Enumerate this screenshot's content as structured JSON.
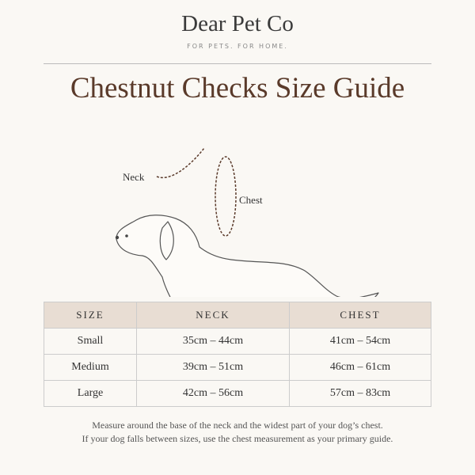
{
  "header": {
    "title": "Dear Pet Co",
    "tagline": "FOR PETS. FOR HOME."
  },
  "title": "Chestnut Checks Size Guide",
  "diagram": {
    "neck_label": "Neck",
    "chest_label": "Chest"
  },
  "table": {
    "columns": [
      "SIZE",
      "NECK",
      "CHEST"
    ],
    "rows": [
      [
        "Small",
        "35cm – 44cm",
        "41cm – 54cm"
      ],
      [
        "Medium",
        "39cm – 51cm",
        "46cm – 61cm"
      ],
      [
        "Large",
        "42cm – 56cm",
        "57cm – 83cm"
      ]
    ]
  },
  "notes": [
    "Measure around the base of the neck and the widest part of your dog’s chest.",
    "If your dog falls between sizes, use the chest measurement as your primary guide."
  ]
}
